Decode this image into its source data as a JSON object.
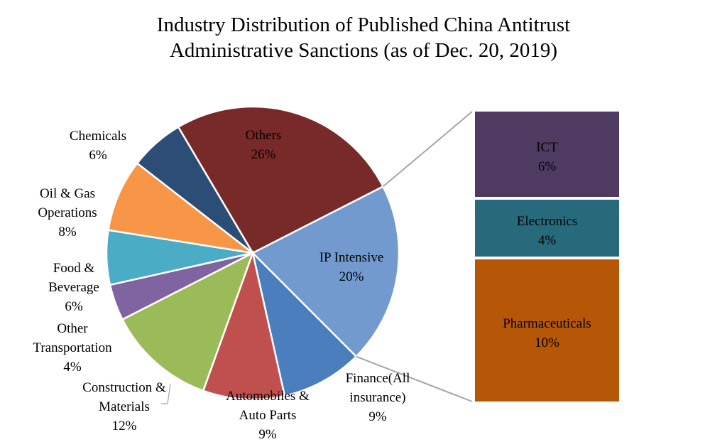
{
  "chart_data": {
    "type": "pie",
    "title": "Industry Distribution of Published China Antitrust Administrative Sanctions (as of Dec. 20, 2019)",
    "title_lines": [
      "Industry Distribution of Published China Antitrust",
      "Administrative Sanctions (as of Dec. 20, 2019)"
    ],
    "slices": [
      {
        "label": "Others",
        "label_lines": [
          "Others"
        ],
        "value": 26,
        "pct_label": "26%",
        "color": "#772A28"
      },
      {
        "label": "IP Intensive",
        "label_lines": [
          "IP Intensive"
        ],
        "value": 20,
        "pct_label": "20%",
        "color": "#729ACE"
      },
      {
        "label": "Finance(All insurance)",
        "label_lines": [
          "Finance(All",
          "insurance)"
        ],
        "value": 9,
        "pct_label": "9%",
        "color": "#4A7EBD"
      },
      {
        "label": "Automobiles & Auto Parts",
        "label_lines": [
          "Automobiles &",
          "Auto Parts"
        ],
        "value": 9,
        "pct_label": "9%",
        "color": "#C0504D"
      },
      {
        "label": "Construction & Materials",
        "label_lines": [
          "Construction &",
          "Materials"
        ],
        "value": 12,
        "pct_label": "12%",
        "color": "#9BBB59"
      },
      {
        "label": "Other Transportation",
        "label_lines": [
          "Other",
          "Transportation"
        ],
        "value": 4,
        "pct_label": "4%",
        "color": "#8064A2"
      },
      {
        "label": "Food & Beverage",
        "label_lines": [
          "Food &",
          "Beverage"
        ],
        "value": 6,
        "pct_label": "6%",
        "color": "#4BACC6"
      },
      {
        "label": "Oil & Gas Operations",
        "label_lines": [
          "Oil & Gas",
          "Operations"
        ],
        "value": 8,
        "pct_label": "8%",
        "color": "#F79646"
      },
      {
        "label": "Chemicals",
        "label_lines": [
          "Chemicals"
        ],
        "value": 6,
        "pct_label": "6%",
        "color": "#2C4D75"
      }
    ],
    "breakout": {
      "of": "IP Intensive",
      "segments": [
        {
          "label": "ICT",
          "value": 6,
          "pct_label": "6%",
          "color": "#4F3B62"
        },
        {
          "label": "Electronics",
          "value": 4,
          "pct_label": "4%",
          "color": "#276A7C"
        },
        {
          "label": "Pharmaceuticals",
          "value": 10,
          "pct_label": "10%",
          "color": "#B65708"
        }
      ]
    }
  }
}
